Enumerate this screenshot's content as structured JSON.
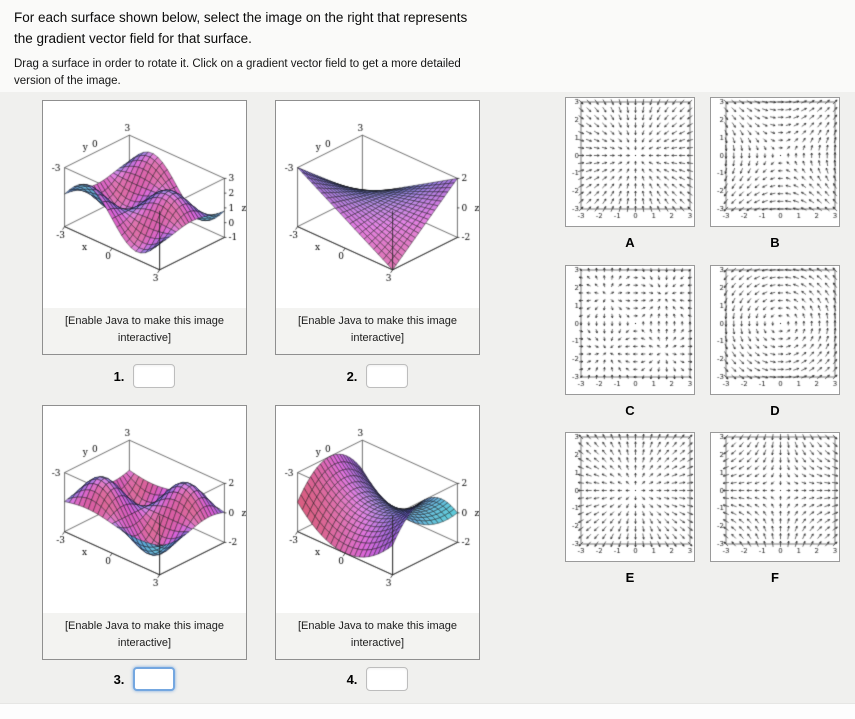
{
  "question": {
    "line1": "For each surface shown below, select the image on the right that represents",
    "line2": "the gradient vector field for that surface.",
    "hint_line1": "Drag a surface in order to rotate it. Click on a gradient vector field to get a more detailed",
    "hint_line2": "version of the image."
  },
  "applet_caption": {
    "line1": "[Enable Java to make this image",
    "line2": "interactive]"
  },
  "field_axis": {
    "ticks": [
      -3,
      -2,
      -1,
      0,
      1,
      2,
      3
    ]
  },
  "surfaces": [
    {
      "number_label": "1.",
      "answer_value": "",
      "focused": false,
      "fn": "surface1",
      "zlim": [
        -1,
        3
      ],
      "z_ticks": [
        3,
        2,
        1,
        0,
        -1
      ],
      "x_ticks": [
        -3,
        0,
        3
      ],
      "y_ticks": [
        -3,
        0,
        3
      ],
      "axis_labels": {
        "x": "x",
        "y": "y",
        "z": "z"
      }
    },
    {
      "number_label": "2.",
      "answer_value": "",
      "focused": false,
      "fn": "surface2",
      "zlim": [
        -2,
        2
      ],
      "z_ticks": [
        2,
        0,
        -2
      ],
      "x_ticks": [
        -3,
        0,
        3
      ],
      "y_ticks": [
        -3,
        0,
        3
      ],
      "axis_labels": {
        "x": "x",
        "y": "y",
        "z": "z"
      }
    },
    {
      "number_label": "3.",
      "answer_value": "",
      "focused": true,
      "fn": "surface3",
      "zlim": [
        -2,
        2
      ],
      "z_ticks": [
        2,
        0,
        -2
      ],
      "x_ticks": [
        -3,
        0,
        3
      ],
      "y_ticks": [
        -3,
        0,
        3
      ],
      "axis_labels": {
        "x": "x",
        "y": "y",
        "z": "z"
      }
    },
    {
      "number_label": "4.",
      "answer_value": "",
      "focused": false,
      "fn": "surface4",
      "zlim": [
        -2,
        2
      ],
      "z_ticks": [
        2,
        0,
        -2
      ],
      "x_ticks": [
        -3,
        0,
        3
      ],
      "y_ticks": [
        -3,
        0,
        3
      ],
      "axis_labels": {
        "x": "x",
        "y": "y",
        "z": "z"
      }
    }
  ],
  "vector_fields": [
    {
      "label": "A",
      "fn": "inward_radial"
    },
    {
      "label": "B",
      "fn": "grad_xy"
    },
    {
      "label": "C",
      "fn": "grad_sin_sin"
    },
    {
      "label": "D",
      "fn": "rotation"
    },
    {
      "label": "E",
      "fn": "outward_radial"
    },
    {
      "label": "F",
      "fn": "grad_x2_minus_y2"
    }
  ]
}
